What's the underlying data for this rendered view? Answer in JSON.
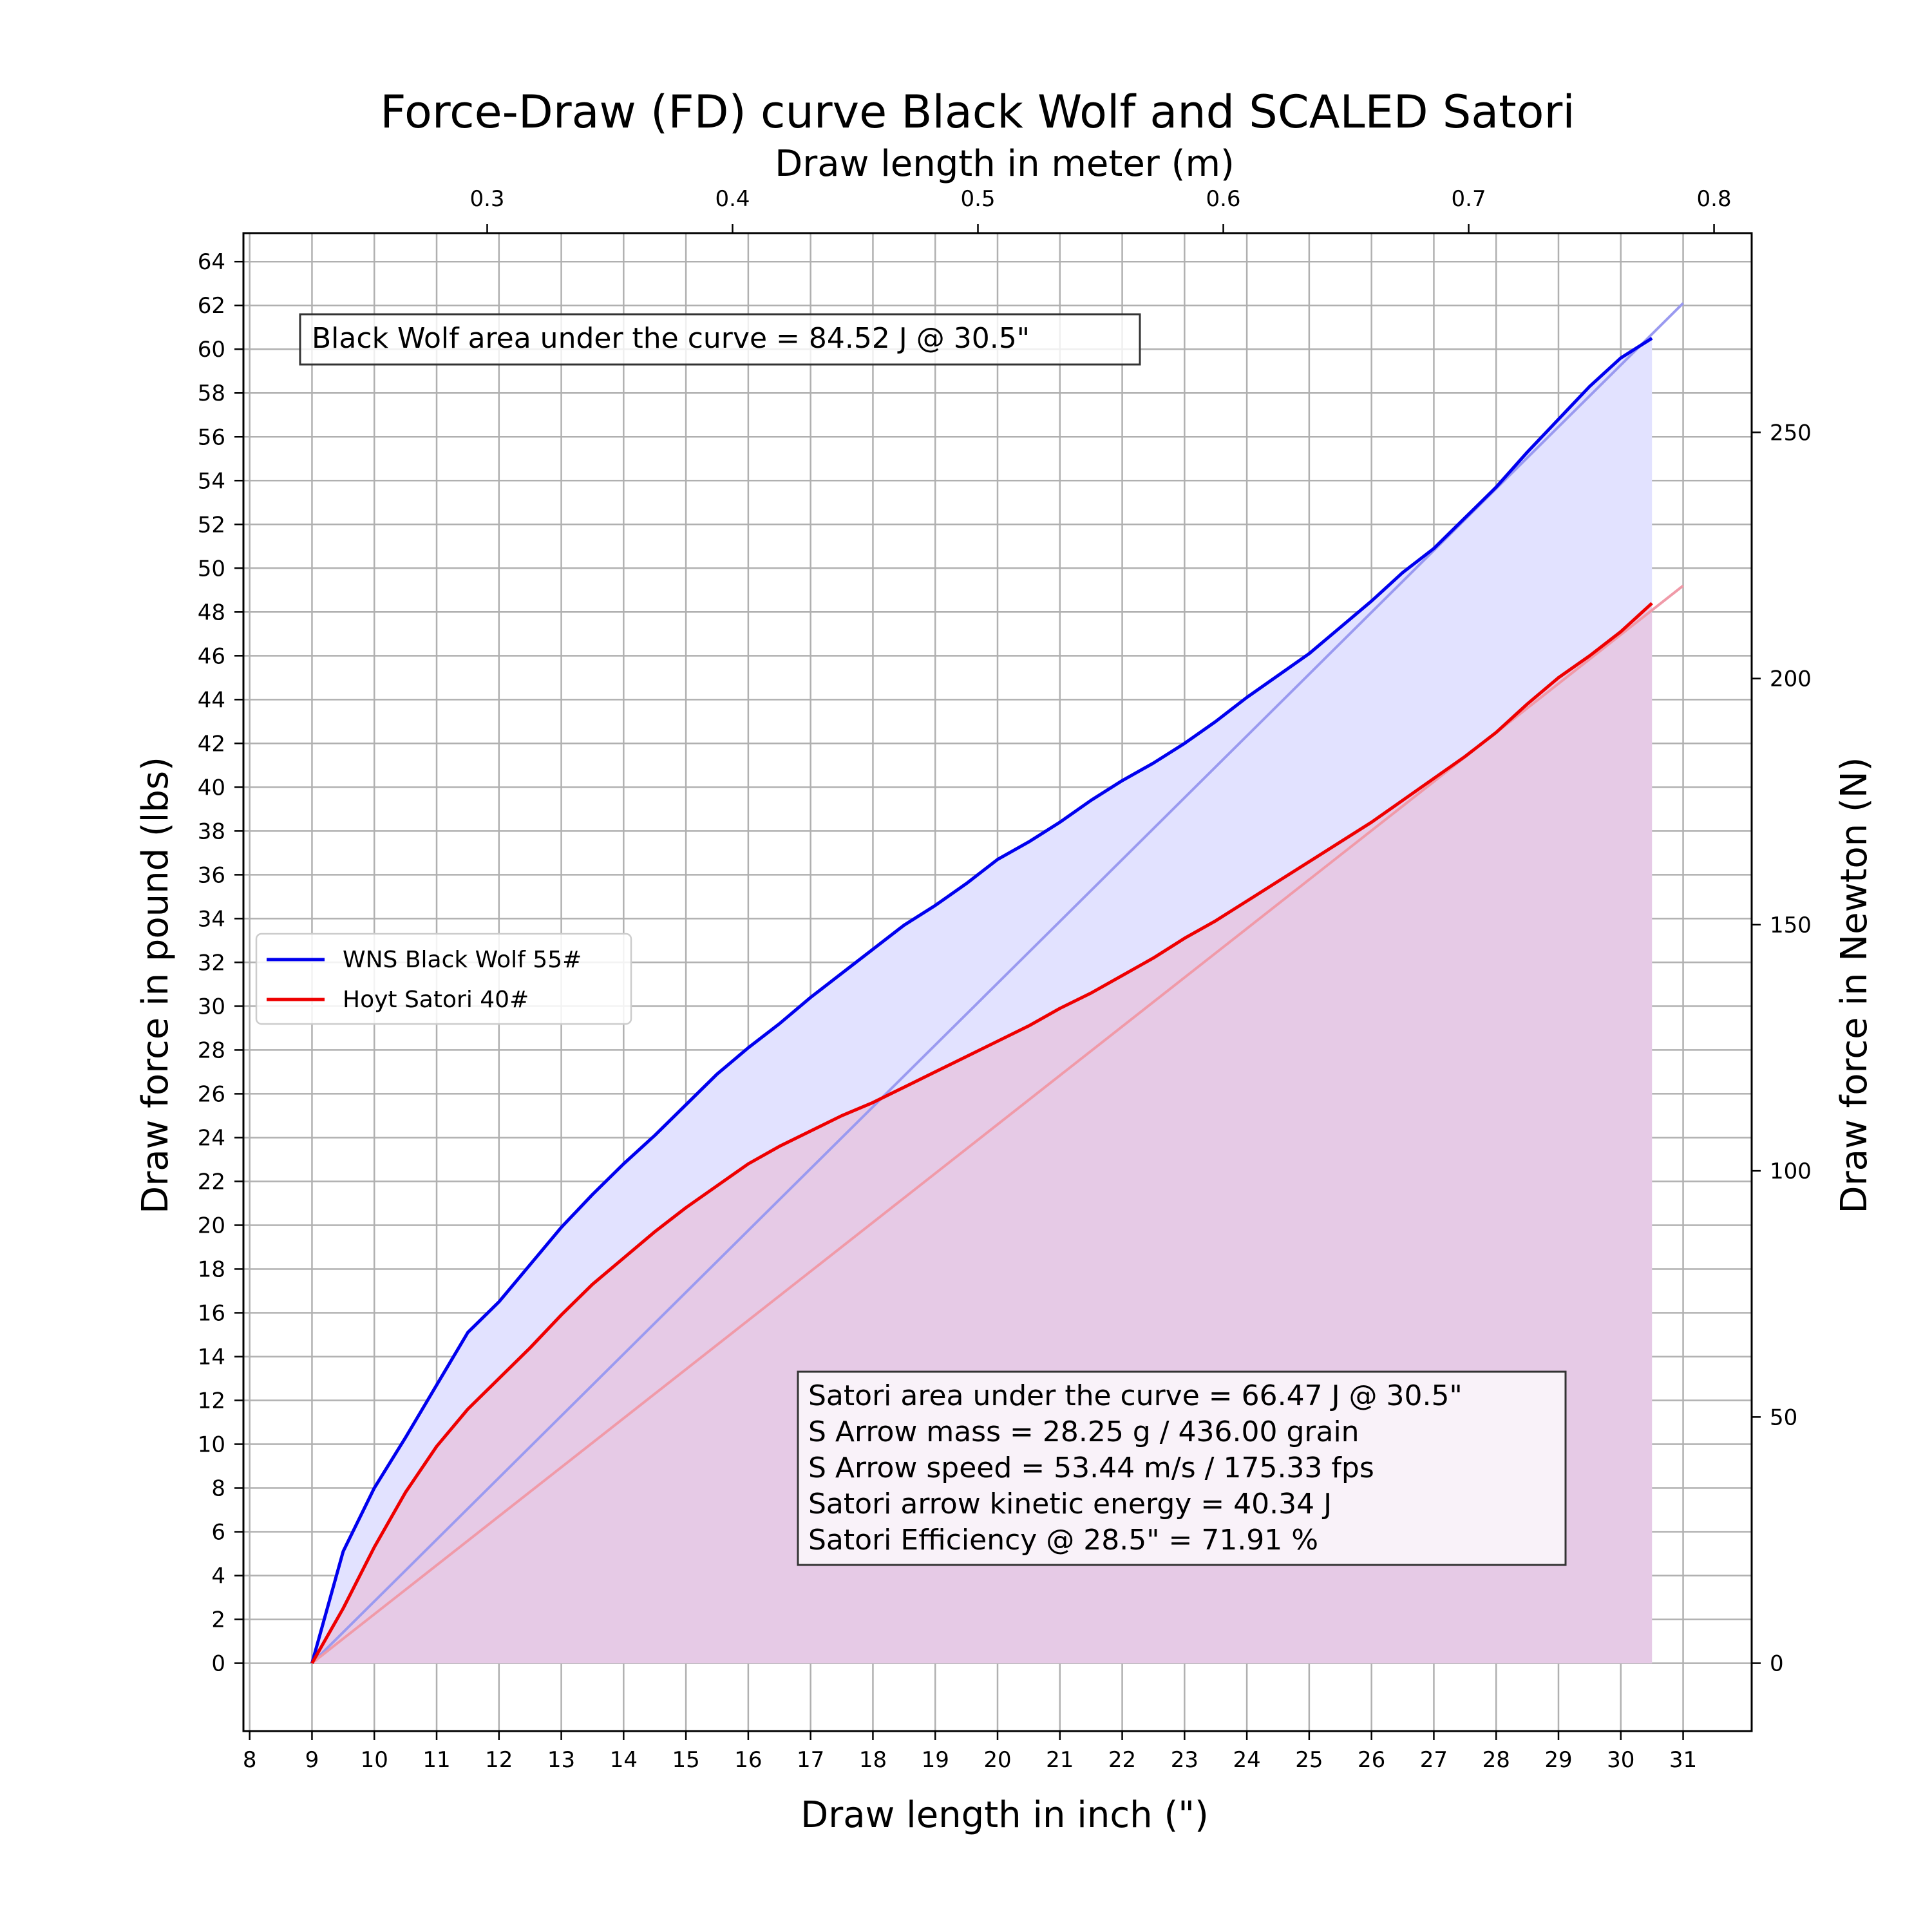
{
  "chart_data": {
    "type": "line",
    "title": "Force-Draw (FD) curve Black Wolf and SCALED Satori",
    "xlabel": "Draw length in inch (\")",
    "ylabel": "Draw force in pound (lbs)",
    "x2label": "Draw length in meter (m)",
    "y2label": "Draw force in Newton (N)",
    "xlim": [
      7.9,
      32.1
    ],
    "ylim": [
      -3.1,
      65.3
    ],
    "x_ticks": [
      "8",
      "9",
      "10",
      "11",
      "12",
      "13",
      "14",
      "15",
      "16",
      "17",
      "18",
      "19",
      "20",
      "21",
      "22",
      "23",
      "24",
      "25",
      "26",
      "27",
      "28",
      "29",
      "30",
      "31"
    ],
    "y_ticks": [
      "0",
      "2",
      "4",
      "6",
      "8",
      "10",
      "12",
      "14",
      "16",
      "18",
      "20",
      "22",
      "24",
      "26",
      "28",
      "30",
      "32",
      "34",
      "36",
      "38",
      "40",
      "42",
      "44",
      "46",
      "48",
      "50",
      "52",
      "54",
      "56",
      "58",
      "60",
      "62",
      "64"
    ],
    "x2_ticks": [
      "0.3",
      "0.4",
      "0.5",
      "0.6",
      "0.7",
      "0.8"
    ],
    "y2_ticks": [
      "0",
      "50",
      "100",
      "150",
      "200",
      "250"
    ],
    "grid": true,
    "legend_position": "center-left",
    "series": [
      {
        "name": "WNS Black Wolf 55#",
        "color": "#0000ee",
        "fill": "#e2e2ff",
        "x": [
          9,
          9.5,
          10,
          10.5,
          11,
          11.5,
          12,
          12.5,
          13,
          13.5,
          14,
          14.5,
          15,
          15.5,
          16,
          16.5,
          17,
          17.5,
          18,
          18.5,
          19,
          19.5,
          20,
          20.5,
          21,
          21.5,
          22,
          22.5,
          23,
          23.5,
          24,
          24.5,
          25,
          25.5,
          26,
          26.5,
          27,
          27.5,
          28,
          28.5,
          29,
          29.5,
          30,
          30.5
        ],
        "y": [
          0,
          5.1,
          8.0,
          10.3,
          12.7,
          15.1,
          16.5,
          18.2,
          19.9,
          21.4,
          22.8,
          24.1,
          25.5,
          26.9,
          28.1,
          29.2,
          30.4,
          31.5,
          32.6,
          33.7,
          34.6,
          35.6,
          36.7,
          37.5,
          38.4,
          39.4,
          40.3,
          41.1,
          42.0,
          43.0,
          44.1,
          45.1,
          46.1,
          47.3,
          48.5,
          49.8,
          50.9,
          52.3,
          53.7,
          55.3,
          56.8,
          58.3,
          59.6,
          60.5
        ]
      },
      {
        "name": "Hoyt Satori 40#",
        "color": "#ee0000",
        "fill": "#e7c8e3",
        "x": [
          9,
          9.5,
          10,
          10.5,
          11,
          11.5,
          12,
          12.5,
          13,
          13.5,
          14,
          14.5,
          15,
          15.5,
          16,
          16.5,
          17,
          17.5,
          18,
          18.5,
          19,
          19.5,
          20,
          20.5,
          21,
          21.5,
          22,
          22.5,
          23,
          23.5,
          24,
          24.5,
          25,
          25.5,
          26,
          26.5,
          27,
          27.5,
          28,
          28.5,
          29,
          29.5,
          30,
          30.5
        ],
        "y": [
          0,
          2.5,
          5.3,
          7.8,
          9.9,
          11.6,
          13.0,
          14.4,
          15.9,
          17.3,
          18.5,
          19.7,
          20.8,
          21.8,
          22.8,
          23.6,
          24.3,
          25.0,
          25.6,
          26.3,
          27.0,
          27.7,
          28.4,
          29.1,
          29.9,
          30.6,
          31.4,
          32.2,
          33.1,
          33.9,
          34.8,
          35.7,
          36.6,
          37.5,
          38.4,
          39.4,
          40.4,
          41.4,
          42.5,
          43.8,
          45.0,
          46.0,
          47.1,
          48.4
        ]
      }
    ],
    "reference_lines": [
      {
        "x": [
          9,
          31
        ],
        "y": [
          0,
          62.1
        ],
        "color": "#9a9af0"
      },
      {
        "x": [
          9,
          31
        ],
        "y": [
          0,
          49.2
        ],
        "color": "#f09aa8"
      }
    ],
    "annotations": {
      "black_wolf_box": [
        "Black Wolf area under the curve = 84.52 J @ 30.5\""
      ],
      "satori_box": [
        "Satori area under the curve = 66.47 J @ 30.5\"",
        "S Arrow mass = 28.25 g /  436.00 grain",
        "S Arrow speed = 53.44 m/s /  175.33 fps",
        "Satori arrow kinetic energy = 40.34 J",
        "Satori Efficiency @ 28.5\" = 71.91 %"
      ]
    }
  }
}
